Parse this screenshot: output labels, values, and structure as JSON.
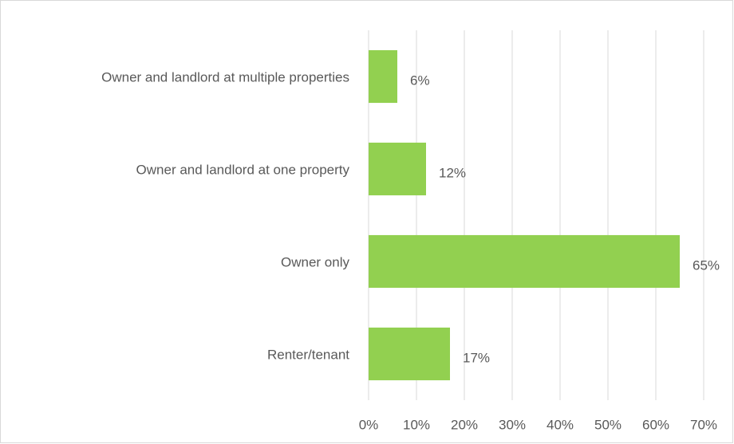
{
  "chart_data": {
    "type": "bar",
    "orientation": "horizontal",
    "categories": [
      "Owner and landlord at multiple properties",
      "Owner and landlord at one property",
      "Owner only",
      "Renter/tenant"
    ],
    "values": [
      6,
      12,
      65,
      17
    ],
    "value_labels": [
      "6%",
      "12%",
      "65%",
      "17%"
    ],
    "color": "#92d050",
    "xlim": [
      0,
      70
    ],
    "xticks": [
      {
        "value": 0,
        "label": "0%"
      },
      {
        "value": 10,
        "label": "10%"
      },
      {
        "value": 20,
        "label": "20%"
      },
      {
        "value": 30,
        "label": "30%"
      },
      {
        "value": 40,
        "label": "40%"
      },
      {
        "value": 50,
        "label": "50%"
      },
      {
        "value": 60,
        "label": "60%"
      },
      {
        "value": 70,
        "label": "70%"
      }
    ],
    "grid": true
  }
}
